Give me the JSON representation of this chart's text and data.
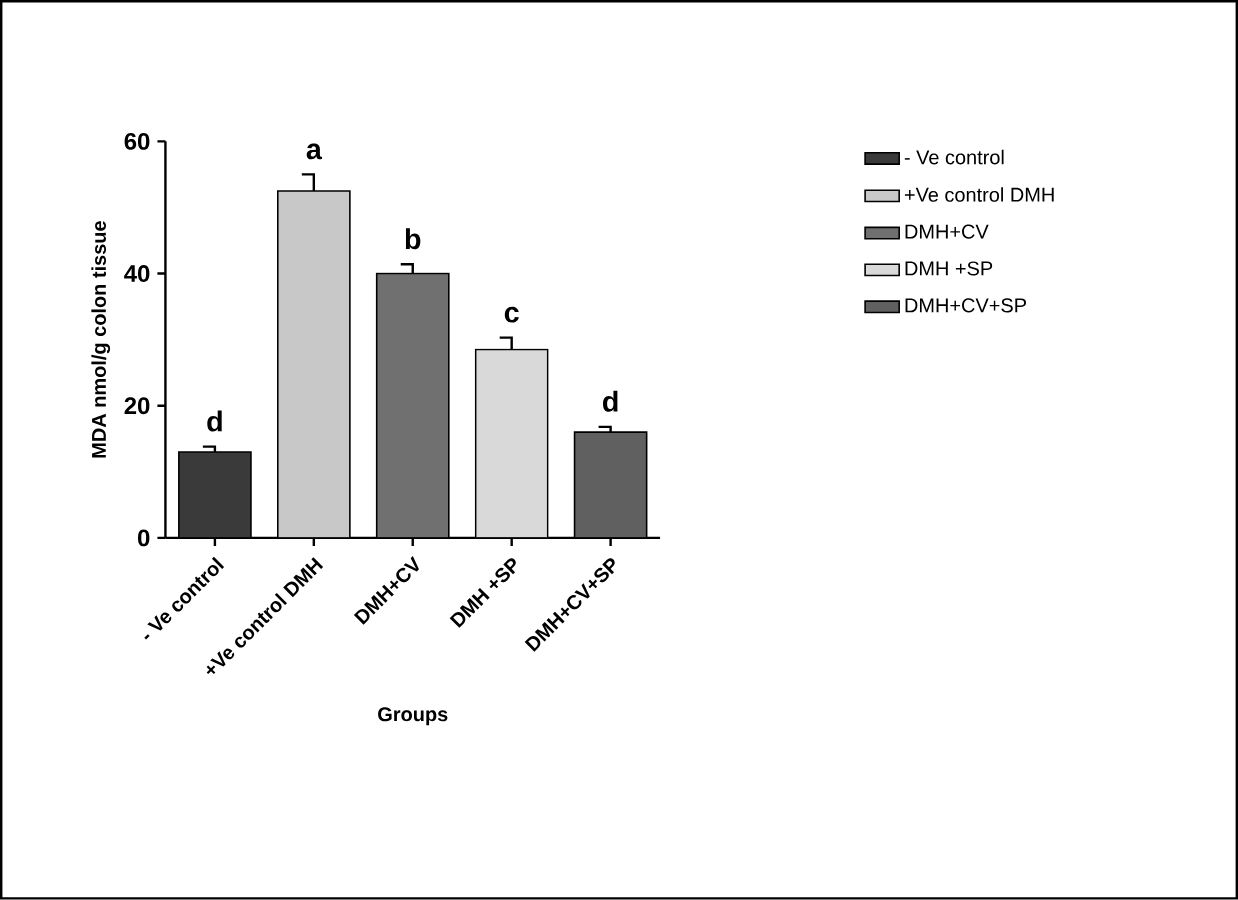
{
  "chart_data": {
    "type": "bar",
    "xlabel": "Groups",
    "ylabel": "MDA nmol/g colon tissue",
    "categories": [
      "- Ve control",
      "+Ve control DMH",
      "DMH+CV",
      "DMH +SP",
      "DMH+CV+SP"
    ],
    "series": [
      {
        "name": "- Ve control",
        "color": "#3a3a3a",
        "values": [
          13,
          null,
          null,
          null,
          null
        ],
        "errors": [
          [
            13,
            13.8
          ],
          null,
          null,
          null,
          null
        ],
        "value_labels": [
          "d",
          null,
          null,
          null,
          null
        ]
      },
      {
        "name": "+Ve control DMH",
        "color": "#c8c8c8",
        "values": [
          null,
          52.5,
          null,
          null,
          null
        ],
        "errors": [
          null,
          [
            52.5,
            55
          ],
          null,
          null,
          null
        ],
        "value_labels": [
          null,
          "a",
          null,
          null,
          null
        ]
      },
      {
        "name": "DMH+CV",
        "color": "#707070",
        "values": [
          null,
          null,
          40,
          null,
          null
        ],
        "errors": [
          null,
          null,
          [
            40,
            41.4
          ],
          null,
          null
        ],
        "value_labels": [
          null,
          null,
          "b",
          null,
          null
        ]
      },
      {
        "name": "DMH +SP",
        "color": "#d9d9d9",
        "values": [
          null,
          null,
          null,
          28.5,
          null
        ],
        "errors": [
          null,
          null,
          null,
          [
            28.5,
            30.3
          ],
          null
        ],
        "value_labels": [
          null,
          null,
          null,
          "c",
          null
        ]
      },
      {
        "name": "DMH+CV+SP",
        "color": "#606060",
        "values": [
          null,
          null,
          null,
          null,
          16
        ],
        "errors": [
          null,
          null,
          null,
          null,
          [
            16,
            16.8
          ]
        ],
        "value_labels": [
          null,
          null,
          null,
          null,
          "d"
        ]
      }
    ],
    "ylim": [
      0,
      60
    ],
    "yticks": [
      0,
      20,
      40,
      60
    ],
    "grid": false,
    "legend": "right"
  }
}
